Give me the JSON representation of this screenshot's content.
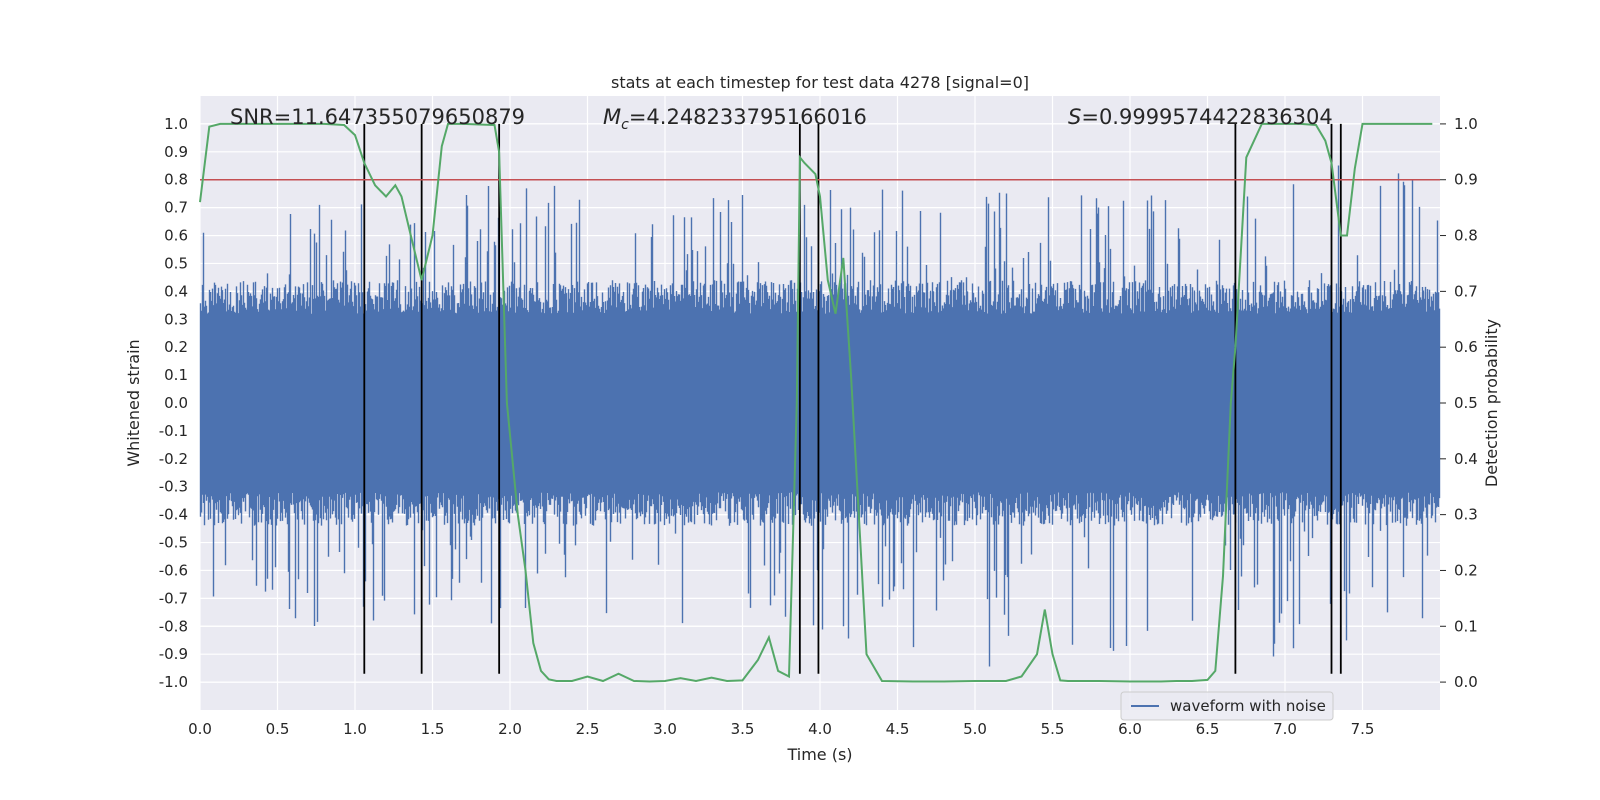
{
  "chart_data": {
    "type": "line",
    "title": "stats at each timestep for test data 4278 [signal=0]",
    "xlabel": "Time (s)",
    "ylabel": "Whitened strain",
    "y2label": "Detection probability",
    "xlim": [
      0.0,
      8.0
    ],
    "ylim": [
      -1.1,
      1.1
    ],
    "y2lim": [
      -0.05,
      1.05
    ],
    "xticks": [
      "0.0",
      "0.5",
      "1.0",
      "1.5",
      "2.0",
      "2.5",
      "3.0",
      "3.5",
      "4.0",
      "4.5",
      "5.0",
      "5.5",
      "6.0",
      "6.5",
      "7.0",
      "7.5"
    ],
    "yticks": [
      "-1.0",
      "-0.9",
      "-0.8",
      "-0.7",
      "-0.6",
      "-0.5",
      "-0.4",
      "-0.3",
      "-0.2",
      "-0.1",
      "0.0",
      "0.1",
      "0.2",
      "0.3",
      "0.4",
      "0.5",
      "0.6",
      "0.7",
      "0.8",
      "0.9",
      "1.0"
    ],
    "y2ticks": [
      "0.0",
      "0.1",
      "0.2",
      "0.3",
      "0.4",
      "0.5",
      "0.6",
      "0.7",
      "0.8",
      "0.9",
      "1.0"
    ],
    "grid": true,
    "legend": {
      "position": "bottom-right",
      "entries": [
        "waveform with noise"
      ]
    },
    "annotations": {
      "snr": "SNR=11.647355079650879",
      "mc_symbol": "M",
      "mc_sub": "c",
      "mc_value": "=4.248233795166016",
      "s_symbol": "S",
      "s_value": "=0.9999574422836304"
    },
    "threshold_line": {
      "y": 0.8,
      "color": "#c44e52"
    },
    "vertical_lines": [
      1.06,
      1.43,
      1.93,
      3.87,
      3.99,
      6.68,
      7.3,
      7.36
    ],
    "series": [
      {
        "name": "waveform with noise",
        "color": "#4c72b0",
        "kind": "noise",
        "envelope": {
          "x": [
            0.0,
            1.0,
            2.0,
            3.0,
            4.0,
            5.0,
            6.0,
            7.0,
            7.5,
            8.0
          ],
          "upper": [
            0.7,
            0.76,
            0.82,
            0.73,
            0.77,
            0.77,
            0.75,
            0.77,
            0.98,
            0.77
          ],
          "lower": [
            -0.82,
            -0.8,
            -0.82,
            -0.82,
            -0.82,
            -0.95,
            -0.9,
            -0.95,
            -0.95,
            -0.85
          ]
        }
      },
      {
        "name": "detection probability",
        "color": "#55a868",
        "axis": "right",
        "x": [
          0.0,
          0.06,
          0.13,
          0.2,
          0.4,
          0.6,
          0.8,
          0.93,
          1.0,
          1.06,
          1.13,
          1.2,
          1.26,
          1.3,
          1.36,
          1.43,
          1.5,
          1.56,
          1.6,
          1.7,
          1.8,
          1.9,
          1.93,
          1.98,
          2.05,
          2.1,
          2.15,
          2.2,
          2.25,
          2.3,
          2.4,
          2.5,
          2.6,
          2.7,
          2.8,
          2.9,
          3.0,
          3.1,
          3.2,
          3.3,
          3.4,
          3.5,
          3.6,
          3.67,
          3.73,
          3.8,
          3.85,
          3.87,
          3.9,
          3.97,
          4.0,
          4.05,
          4.1,
          4.15,
          4.2,
          4.25,
          4.3,
          4.4,
          4.6,
          4.8,
          5.0,
          5.2,
          5.3,
          5.4,
          5.45,
          5.5,
          5.55,
          5.6,
          5.7,
          5.8,
          6.0,
          6.2,
          6.3,
          6.4,
          6.5,
          6.55,
          6.6,
          6.65,
          6.68,
          6.75,
          6.85,
          7.0,
          7.1,
          7.2,
          7.26,
          7.3,
          7.36,
          7.4,
          7.45,
          7.5,
          7.6,
          7.8,
          7.95
        ],
        "values": [
          0.86,
          0.995,
          1.0,
          1.0,
          1.0,
          1.0,
          1.0,
          0.998,
          0.98,
          0.93,
          0.89,
          0.87,
          0.89,
          0.87,
          0.8,
          0.72,
          0.8,
          0.96,
          1.0,
          1.0,
          0.999,
          0.998,
          0.95,
          0.5,
          0.3,
          0.2,
          0.07,
          0.02,
          0.005,
          0.002,
          0.002,
          0.01,
          0.002,
          0.015,
          0.002,
          0.001,
          0.002,
          0.007,
          0.002,
          0.008,
          0.002,
          0.003,
          0.04,
          0.08,
          0.02,
          0.01,
          0.5,
          0.94,
          0.93,
          0.91,
          0.87,
          0.72,
          0.66,
          0.76,
          0.55,
          0.3,
          0.05,
          0.002,
          0.001,
          0.001,
          0.002,
          0.002,
          0.01,
          0.05,
          0.13,
          0.05,
          0.003,
          0.002,
          0.002,
          0.002,
          0.001,
          0.001,
          0.002,
          0.002,
          0.004,
          0.02,
          0.19,
          0.5,
          0.6,
          0.94,
          1.0,
          1.0,
          1.0,
          0.998,
          0.97,
          0.93,
          0.8,
          0.8,
          0.92,
          1.0,
          1.0,
          1.0,
          1.0
        ]
      }
    ]
  }
}
